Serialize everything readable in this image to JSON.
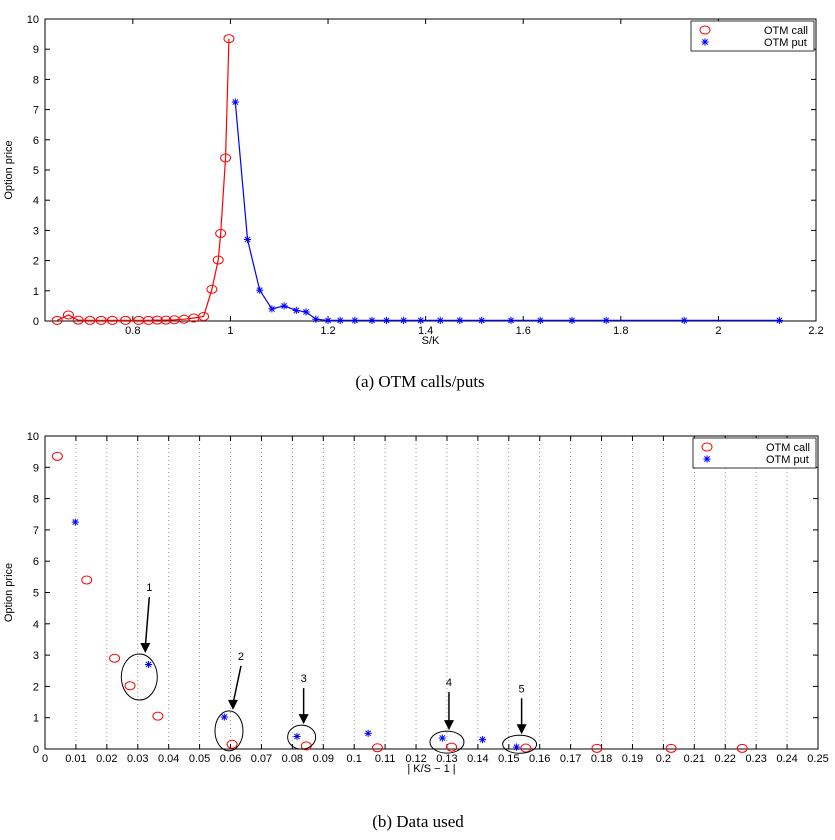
{
  "chart_data": [
    {
      "type": "line",
      "caption": "(a) OTM calls/puts",
      "xlabel": "S/K",
      "ylabel": "Option price",
      "xlim": [
        0.62,
        2.2
      ],
      "ylim": [
        0,
        10
      ],
      "xticks": [
        0.8,
        1,
        1.2,
        1.4,
        1.6,
        1.8,
        2,
        2.2
      ],
      "yticks": [
        0,
        1,
        2,
        3,
        4,
        5,
        6,
        7,
        8,
        9,
        10
      ],
      "legend": "top-right",
      "series": [
        {
          "name": "OTM call",
          "color": "#ff0000",
          "marker": "circle",
          "x": [
            0.645,
            0.668,
            0.688,
            0.712,
            0.735,
            0.758,
            0.785,
            0.812,
            0.832,
            0.85,
            0.868,
            0.885,
            0.905,
            0.925,
            0.945,
            0.962,
            0.975,
            0.98,
            0.99,
            0.997
          ],
          "y": [
            0.02,
            0.2,
            0.03,
            0.02,
            0.02,
            0.02,
            0.02,
            0.02,
            0.02,
            0.03,
            0.03,
            0.04,
            0.06,
            0.1,
            0.15,
            1.05,
            2.02,
            2.9,
            5.4,
            9.35
          ]
        },
        {
          "name": "OTM put",
          "color": "#0000ff",
          "marker": "star",
          "x": [
            1.01,
            1.035,
            1.06,
            1.085,
            1.11,
            1.135,
            1.155,
            1.175,
            1.2,
            1.225,
            1.255,
            1.29,
            1.32,
            1.355,
            1.39,
            1.43,
            1.47,
            1.515,
            1.575,
            1.635,
            1.7,
            1.77,
            1.93,
            2.125
          ],
          "y": [
            7.25,
            2.7,
            1.02,
            0.4,
            0.5,
            0.35,
            0.3,
            0.06,
            0.02,
            0.02,
            0.02,
            0.02,
            0.02,
            0.02,
            0.02,
            0.02,
            0.02,
            0.02,
            0.02,
            0.02,
            0.02,
            0.02,
            0.02,
            0.02
          ]
        }
      ]
    },
    {
      "type": "scatter",
      "caption": "(b) Data used",
      "xlabel": "| K/S − 1 |",
      "ylabel": "Option price",
      "xlim": [
        0,
        0.25
      ],
      "ylim": [
        0,
        10
      ],
      "xticks": [
        "0",
        "0.01",
        "0.02",
        "0.03",
        "0.04",
        "0.05",
        "0.06",
        "0.07",
        "0.08",
        "0.09",
        "0.1",
        "0.11",
        "0.12",
        "0.13",
        "0.14",
        "0.15",
        "0.16",
        "0.17",
        "0.18",
        "0.19",
        "0.2",
        "0.21",
        "0.22",
        "0.23",
        "0.24",
        "0.25"
      ],
      "yticks": [
        0,
        1,
        2,
        3,
        4,
        5,
        6,
        7,
        8,
        9,
        10
      ],
      "grid": "vertical dotted",
      "legend": "top-right",
      "series": [
        {
          "name": "OTM call",
          "color": "#ff0000",
          "marker": "circle",
          "x": [
            0.004,
            0.0135,
            0.0225,
            0.0275,
            0.0365,
            0.0605,
            0.0845,
            0.1075,
            0.1315,
            0.1555,
            0.1785,
            0.2025,
            0.2255
          ],
          "y": [
            9.35,
            5.4,
            2.9,
            2.02,
            1.05,
            0.15,
            0.1,
            0.04,
            0.06,
            0.03,
            0.02,
            0.02,
            0.02
          ]
        },
        {
          "name": "OTM put",
          "color": "#0000ff",
          "marker": "star",
          "x": [
            0.0098,
            0.0335,
            0.058,
            0.0815,
            0.1045,
            0.1285,
            0.1415,
            0.1525
          ],
          "y": [
            7.25,
            2.7,
            1.02,
            0.4,
            0.5,
            0.35,
            0.3,
            0.06
          ]
        }
      ],
      "annotations": [
        {
          "label": "1",
          "ellipse_center": [
            0.0305,
            2.3
          ]
        },
        {
          "label": "2",
          "ellipse_center": [
            0.0595,
            0.58
          ]
        },
        {
          "label": "3",
          "ellipse_center": [
            0.083,
            0.38
          ]
        },
        {
          "label": "4",
          "ellipse_center": [
            0.13,
            0.22
          ]
        },
        {
          "label": "5",
          "ellipse_center": [
            0.1535,
            0.15
          ]
        }
      ]
    }
  ]
}
